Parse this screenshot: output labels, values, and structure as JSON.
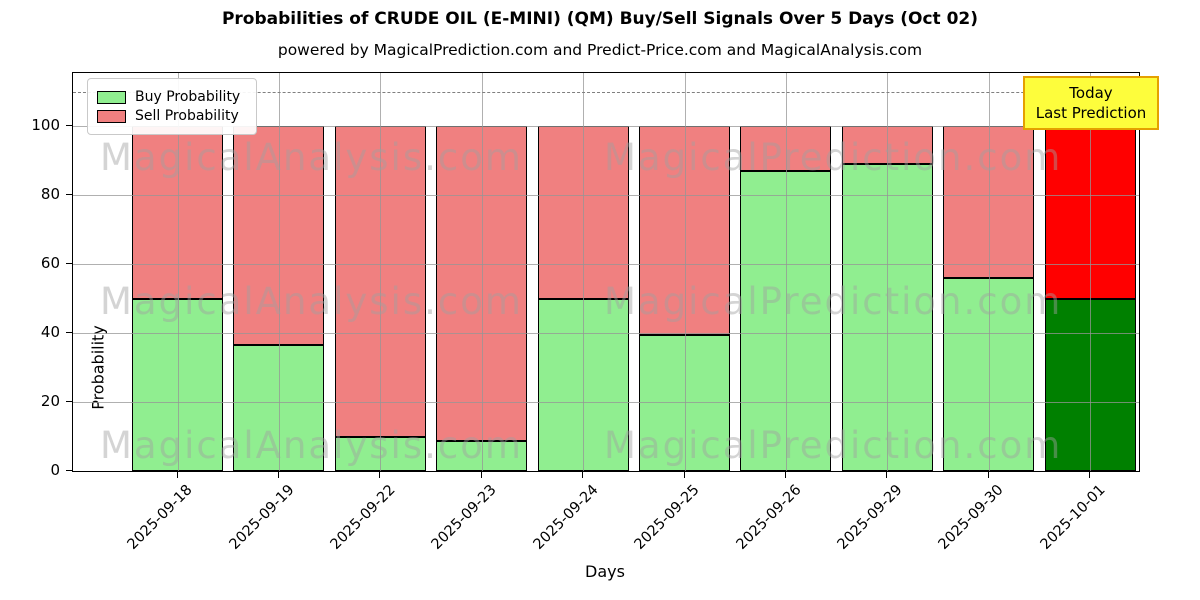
{
  "title": "Probabilities of CRUDE OIL (E-MINI) (QM) Buy/Sell Signals Over 5 Days (Oct 02)",
  "subtitle": "powered by MagicalPrediction.com and Predict-Price.com and MagicalAnalysis.com",
  "watermarks": {
    "left": "MagicalAnalysis.com",
    "right": "MagicalPrediction.com"
  },
  "annotation": {
    "line1": "Today",
    "line2": "Last Prediction"
  },
  "legend": [
    {
      "label": "Buy Probability",
      "color": "#90EE90"
    },
    {
      "label": "Sell Probability",
      "color": "#F08080"
    }
  ],
  "chart_data": {
    "type": "bar",
    "stacked": true,
    "title": "Probabilities of CRUDE OIL (E-MINI) (QM) Buy/Sell Signals Over 5 Days (Oct 02)",
    "xlabel": "Days",
    "ylabel": "Probability",
    "categories": [
      "2025-09-18",
      "2025-09-19",
      "2025-09-22",
      "2025-09-23",
      "2025-09-24",
      "2025-09-25",
      "2025-09-26",
      "2025-09-29",
      "2025-09-30",
      "2025-10-01"
    ],
    "series": [
      {
        "name": "Buy Probability",
        "values": [
          50,
          36.5,
          10,
          8.7,
          50,
          39.5,
          87,
          89,
          56,
          50
        ]
      },
      {
        "name": "Sell Probability",
        "values": [
          50,
          63.5,
          90,
          91.3,
          50,
          60.5,
          13,
          11,
          44,
          50
        ]
      }
    ],
    "yticks": [
      0,
      20,
      40,
      60,
      80,
      100
    ],
    "ylim": [
      0,
      115.5
    ],
    "dashed_line_y": 110,
    "grid": true,
    "legend_position": "upper left",
    "today_index": 9,
    "colors": {
      "buy": "#90EE90",
      "sell": "#F08080",
      "today_buy": "#008000",
      "today_sell": "#FF0000"
    }
  }
}
